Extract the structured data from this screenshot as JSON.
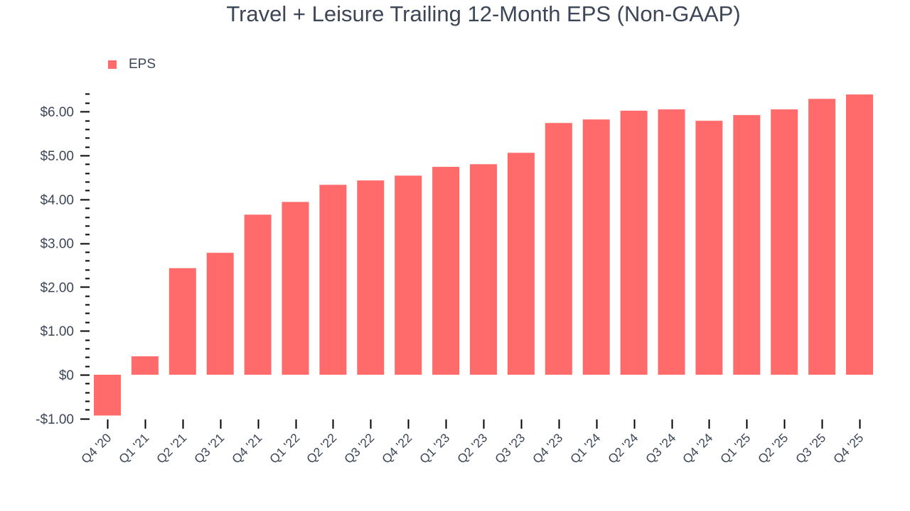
{
  "chart_data": {
    "type": "bar",
    "title": "Travel + Leisure Trailing 12-Month EPS (Non-GAAP)",
    "xlabel": "",
    "ylabel": "",
    "ylim": [
      -1.0,
      6.4
    ],
    "yticks": [
      -1,
      0,
      1,
      2,
      3,
      4,
      5,
      6
    ],
    "ytick_labels": [
      "-$1.00",
      "$0",
      "$1.00",
      "$2.00",
      "$3.00",
      "$4.00",
      "$5.00",
      "$6.00"
    ],
    "grid": false,
    "legend_position": "top-left",
    "categories": [
      "Q4 '20",
      "Q1 '21",
      "Q2 '21",
      "Q3 '21",
      "Q4 '21",
      "Q1 '22",
      "Q2 '22",
      "Q3 '22",
      "Q4 '22",
      "Q1 '23",
      "Q2 '23",
      "Q3 '23",
      "Q4 '23",
      "Q1 '24",
      "Q2 '24",
      "Q3 '24",
      "Q4 '24",
      "Q1 '25",
      "Q2 '25",
      "Q3 '25",
      "Q4 '25"
    ],
    "series": [
      {
        "name": "EPS",
        "color": "#ff6b6b",
        "values": [
          -0.93,
          0.42,
          2.43,
          2.78,
          3.65,
          3.94,
          4.33,
          4.43,
          4.54,
          4.74,
          4.8,
          5.06,
          5.74,
          5.82,
          6.02,
          6.05,
          5.79,
          5.92,
          6.05,
          6.29,
          6.39
        ]
      }
    ]
  },
  "colors": {
    "bar": "#ff6b6b",
    "text": "#3c4657",
    "axis": "#000000"
  },
  "legend": {
    "label": "EPS"
  }
}
